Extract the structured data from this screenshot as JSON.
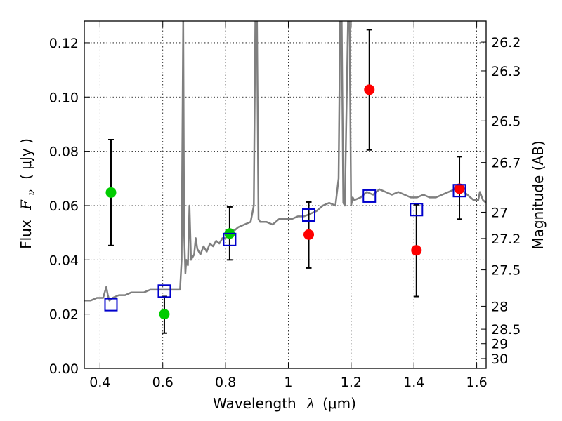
{
  "chart_data": {
    "type": "scatter",
    "xlabel": "Wavelength",
    "xlabel_symbol": "λ",
    "xlabel_unit": "(μm)",
    "ylabel": "Flux",
    "ylabel_symbol": "F",
    "ylabel_subscript": "ν",
    "ylabel_unit": "( μJy )",
    "y2label": "Magnitude (AB)",
    "xlim": [
      0.35,
      1.63
    ],
    "ylim": [
      0.0,
      0.128
    ],
    "grid": true,
    "x_ticks": [
      0.4,
      0.6,
      0.8,
      1.0,
      1.2,
      1.4,
      1.6
    ],
    "x_tick_labels": [
      "0.4",
      "0.6",
      "0.8",
      "1",
      "1.2",
      "1.4",
      "1.6"
    ],
    "y_ticks": [
      0.0,
      0.02,
      0.04,
      0.06,
      0.08,
      0.1,
      0.12
    ],
    "y_tick_labels": [
      "0.00",
      "0.02",
      "0.04",
      "0.06",
      "0.08",
      "0.10",
      "0.12"
    ],
    "y2_ticks": [
      26.2,
      26.3,
      26.5,
      26.7,
      27,
      27.2,
      27.5,
      28,
      28.5,
      29,
      30
    ],
    "y2_tick_labels": [
      "26.2",
      "26.3",
      "26.5",
      "26.7",
      "27",
      "27.2",
      "27.5",
      "28",
      "28.5",
      "29",
      "30"
    ],
    "colors": {
      "spectrum": "#7f7f7f",
      "green_points": "#00cc00",
      "red_points": "#ff0000",
      "model_squares": "#0000cc",
      "error_bars": "#000000",
      "grid": "#000000"
    },
    "series": [
      {
        "kind": "spectrum_line",
        "x": [
          0.35,
          0.37,
          0.39,
          0.41,
          0.42,
          0.425,
          0.43,
          0.44,
          0.46,
          0.48,
          0.5,
          0.52,
          0.54,
          0.56,
          0.58,
          0.6,
          0.62,
          0.64,
          0.655,
          0.66,
          0.665,
          0.668,
          0.672,
          0.675,
          0.68,
          0.685,
          0.69,
          0.695,
          0.7,
          0.705,
          0.71,
          0.72,
          0.73,
          0.74,
          0.75,
          0.76,
          0.77,
          0.78,
          0.79,
          0.8,
          0.81,
          0.82,
          0.83,
          0.84,
          0.86,
          0.88,
          0.89,
          0.895,
          0.9,
          0.905,
          0.91,
          0.93,
          0.95,
          0.97,
          0.99,
          1.01,
          1.03,
          1.05,
          1.07,
          1.09,
          1.11,
          1.13,
          1.15,
          1.16,
          1.165,
          1.17,
          1.175,
          1.18,
          1.19,
          1.195,
          1.2,
          1.205,
          1.21,
          1.23,
          1.25,
          1.27,
          1.29,
          1.31,
          1.33,
          1.35,
          1.37,
          1.39,
          1.41,
          1.43,
          1.45,
          1.47,
          1.49,
          1.51,
          1.53,
          1.55,
          1.57,
          1.59,
          1.605,
          1.61,
          1.62,
          1.63
        ],
        "y": [
          0.025,
          0.025,
          0.026,
          0.026,
          0.03,
          0.027,
          0.025,
          0.026,
          0.027,
          0.027,
          0.028,
          0.028,
          0.028,
          0.029,
          0.029,
          0.029,
          0.029,
          0.029,
          0.029,
          0.04,
          0.128,
          0.05,
          0.035,
          0.04,
          0.038,
          0.06,
          0.04,
          0.041,
          0.042,
          0.048,
          0.044,
          0.042,
          0.045,
          0.043,
          0.046,
          0.045,
          0.047,
          0.046,
          0.048,
          0.048,
          0.05,
          0.051,
          0.051,
          0.052,
          0.053,
          0.054,
          0.06,
          0.128,
          0.128,
          0.055,
          0.054,
          0.054,
          0.053,
          0.055,
          0.055,
          0.055,
          0.056,
          0.056,
          0.057,
          0.058,
          0.06,
          0.061,
          0.06,
          0.07,
          0.128,
          0.128,
          0.061,
          0.06,
          0.128,
          0.128,
          0.06,
          0.063,
          0.062,
          0.063,
          0.065,
          0.064,
          0.066,
          0.065,
          0.064,
          0.065,
          0.064,
          0.063,
          0.063,
          0.064,
          0.063,
          0.063,
          0.064,
          0.065,
          0.066,
          0.066,
          0.064,
          0.062,
          0.062,
          0.065,
          0.062,
          0.061
        ]
      },
      {
        "kind": "points_with_error",
        "color_key": "green_points",
        "x": [
          0.435,
          0.605,
          0.813
        ],
        "y": [
          0.0648,
          0.02,
          0.0497
        ],
        "err_low": [
          0.0453,
          0.013,
          0.04
        ],
        "err_high": [
          0.0843,
          0.0265,
          0.0595
        ]
      },
      {
        "kind": "points_with_error",
        "color_key": "red_points",
        "x": [
          1.065,
          1.258,
          1.408,
          1.545
        ],
        "y": [
          0.0493,
          0.1027,
          0.0435,
          0.0662
        ],
        "err_low": [
          0.037,
          0.0805,
          0.0265,
          0.055
        ],
        "err_high": [
          0.0613,
          0.1248,
          0.0603,
          0.078
        ]
      },
      {
        "kind": "open_squares",
        "color_key": "model_squares",
        "x": [
          0.435,
          0.605,
          0.813,
          1.065,
          1.258,
          1.408,
          1.545
        ],
        "y": [
          0.0235,
          0.0285,
          0.0475,
          0.0565,
          0.0635,
          0.0585,
          0.0655
        ]
      }
    ]
  }
}
